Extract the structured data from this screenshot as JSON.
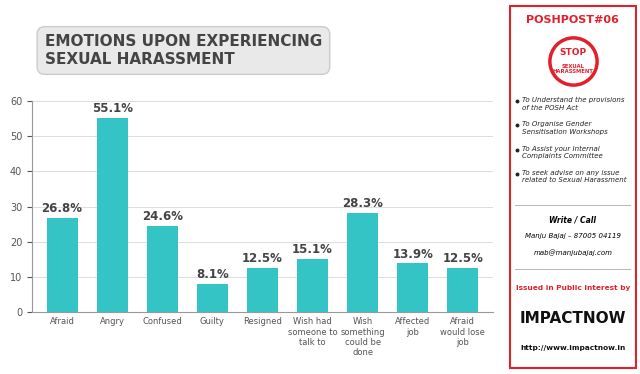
{
  "chart_data": {
    "type": "bar",
    "title": "EMOTIONS UPON EXPERIENCING\nSEXUAL HARASSMENT",
    "categories": [
      "Afraid",
      "Angry",
      "Confused",
      "Guilty",
      "Resigned",
      "Wish had someone to talk to",
      "Wish something could be done",
      "Affected job",
      "Afraid would lose job"
    ],
    "values": [
      26.8,
      55.1,
      24.6,
      8.1,
      12.5,
      15.1,
      28.3,
      13.9,
      12.5
    ],
    "value_labels": [
      "26.8%",
      "55.1%",
      "24.6%",
      "8.1%",
      "12.5%",
      "15.1%",
      "28.3%",
      "13.9%",
      "12.5%"
    ],
    "data_labels": true,
    "color": "#35c4c6",
    "ylim": [
      0,
      60
    ],
    "yticks": [
      0,
      10,
      20,
      30,
      40,
      50,
      60
    ],
    "grid": true
  },
  "side_panel": {
    "header": "POSHPOST#06",
    "sign": {
      "title": "STOP",
      "subtitle": "SEXUAL HARASSMENT"
    },
    "bullets": [
      "To Understand the provisions of the POSH Act",
      "To Organise Gender Sensitisation Workshops",
      "To Assist your Internal Complaints Committee",
      "To seek advise on any issue related to Sexual Harassment"
    ],
    "contact_heading": "Write / Call",
    "contact_name": "Manju Bajaj – 87005 04119",
    "contact_email": "mab@manjubajaj.com",
    "issued_by": "Issued in Public Interest by",
    "brand": "IMPACTNOW",
    "url": "http://www.impactnow.in"
  }
}
